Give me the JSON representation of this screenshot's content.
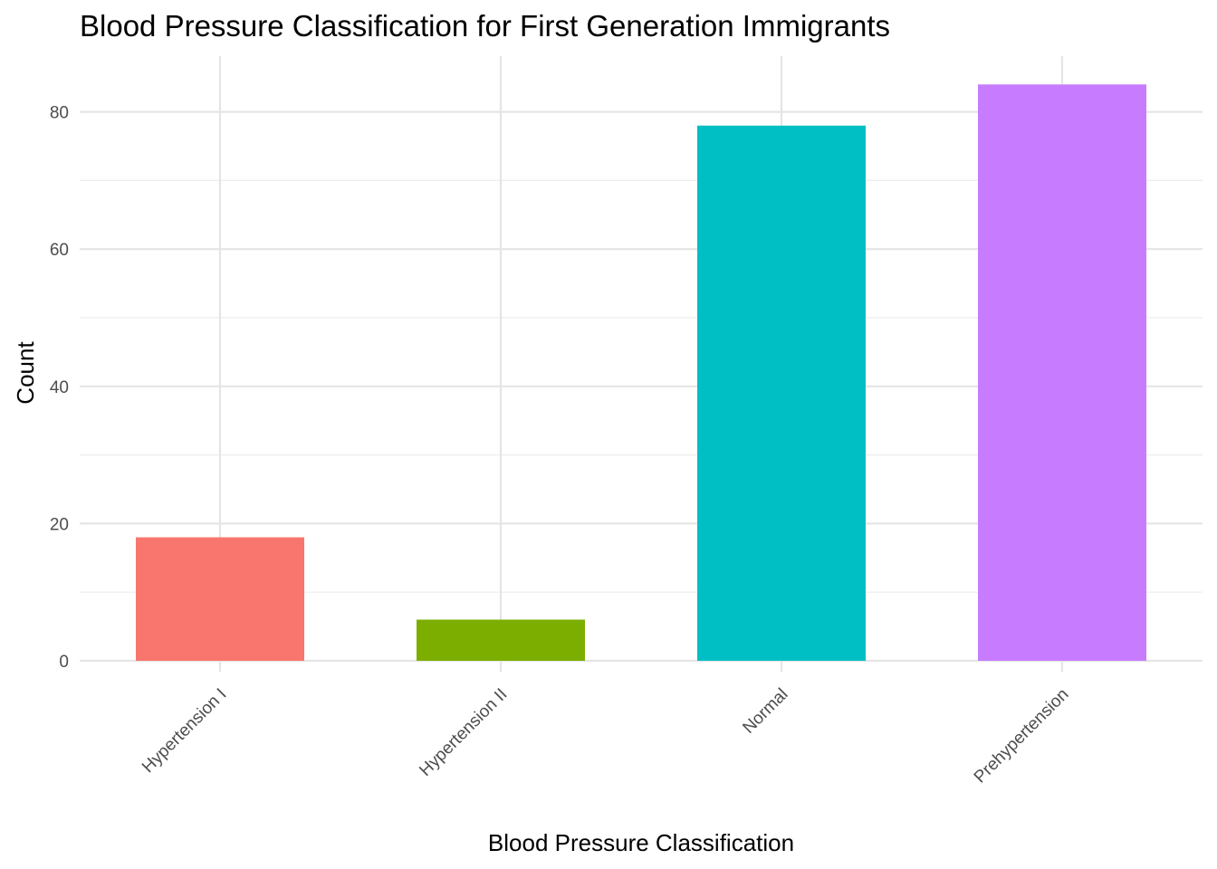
{
  "chart_data": {
    "type": "bar",
    "title": "Blood Pressure Classification for First Generation Immigrants",
    "xlabel": "Blood Pressure Classification",
    "ylabel": "Count",
    "categories": [
      "Hypertension I",
      "Hypertension II",
      "Normal",
      "Prehypertension"
    ],
    "values": [
      18,
      6,
      78,
      84
    ],
    "colors": [
      "#F8766D",
      "#7CAE00",
      "#00BFC4",
      "#C77CFF"
    ],
    "yticks": [
      0,
      20,
      40,
      60,
      80
    ],
    "ylim": [
      0,
      88
    ],
    "grid": true,
    "legend": "none"
  }
}
